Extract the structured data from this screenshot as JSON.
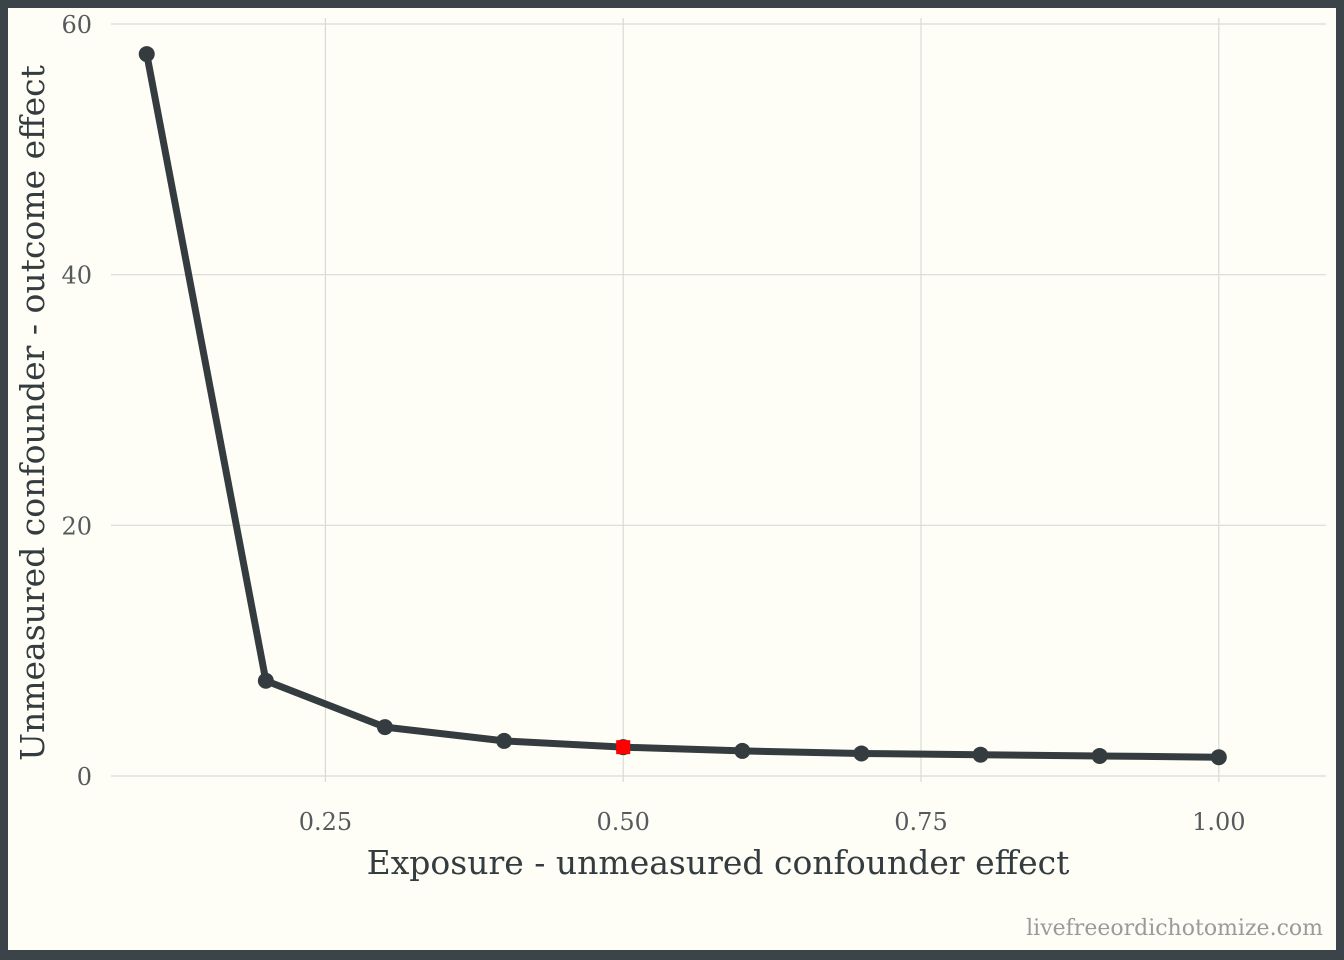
{
  "chart_data": {
    "type": "line",
    "xlabel": "Exposure - unmeasured confounder effect",
    "ylabel": "Unmeasured confounder - outcome effect",
    "caption": "livefreeordichotomize.com",
    "xlim": [
      0.07,
      1.09
    ],
    "ylim": [
      0,
      60
    ],
    "x_ticks": [
      0.25,
      0.5,
      0.75,
      1.0
    ],
    "x_tick_labels": [
      "0.25",
      "0.50",
      "0.75",
      "1.00"
    ],
    "y_ticks": [
      0,
      20,
      40,
      60
    ],
    "y_tick_labels": [
      "0",
      "20",
      "40",
      "60"
    ],
    "grid": true,
    "series": [
      {
        "color": "#343c40",
        "x": [
          0.1,
          0.2,
          0.3,
          0.4,
          0.5,
          0.6,
          0.7,
          0.8,
          0.9,
          1.0
        ],
        "y": [
          57.6,
          7.6,
          3.9,
          2.8,
          2.3,
          2.0,
          1.8,
          1.7,
          1.6,
          1.5
        ]
      }
    ],
    "highlight": {
      "x": 0.5,
      "y": 2.3,
      "color": "#ff0000",
      "shape": "square"
    }
  }
}
